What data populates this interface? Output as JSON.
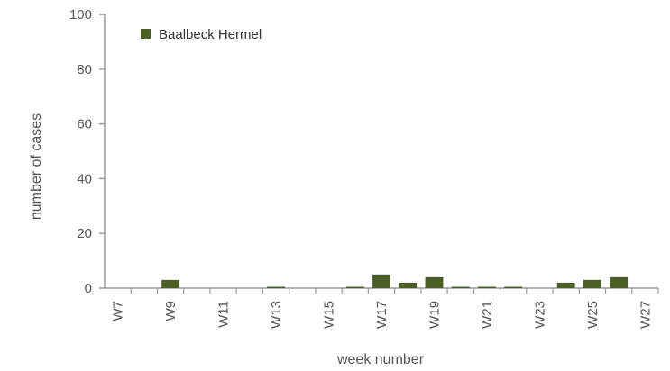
{
  "chart_data": {
    "type": "bar",
    "categories": [
      "W7",
      "W8",
      "W9",
      "W10",
      "W11",
      "W12",
      "W13",
      "W14",
      "W15",
      "W16",
      "W17",
      "W18",
      "W19",
      "W20",
      "W21",
      "W22",
      "W23",
      "W24",
      "W25",
      "W26",
      "W27"
    ],
    "tick_labels": [
      "W7",
      "W9",
      "W11",
      "W13",
      "W15",
      "W17",
      "W19",
      "W21",
      "W23",
      "W25",
      "W27"
    ],
    "series": [
      {
        "name": "Baalbeck Hermel",
        "values": [
          0,
          0,
          3,
          0,
          0,
          0,
          0.5,
          0,
          0,
          0.5,
          5,
          2,
          4,
          0.5,
          0.5,
          0.5,
          0,
          2,
          3,
          4,
          0
        ]
      }
    ],
    "xlabel": "week number",
    "ylabel": "number of cases",
    "ylim": [
      0,
      100
    ],
    "yticks": [
      0,
      20,
      40,
      60,
      80,
      100
    ],
    "grid": false,
    "legend_position": "top-left",
    "colors": {
      "bar": "#4d5e26",
      "axis": "#999999",
      "text": "#555555"
    }
  }
}
